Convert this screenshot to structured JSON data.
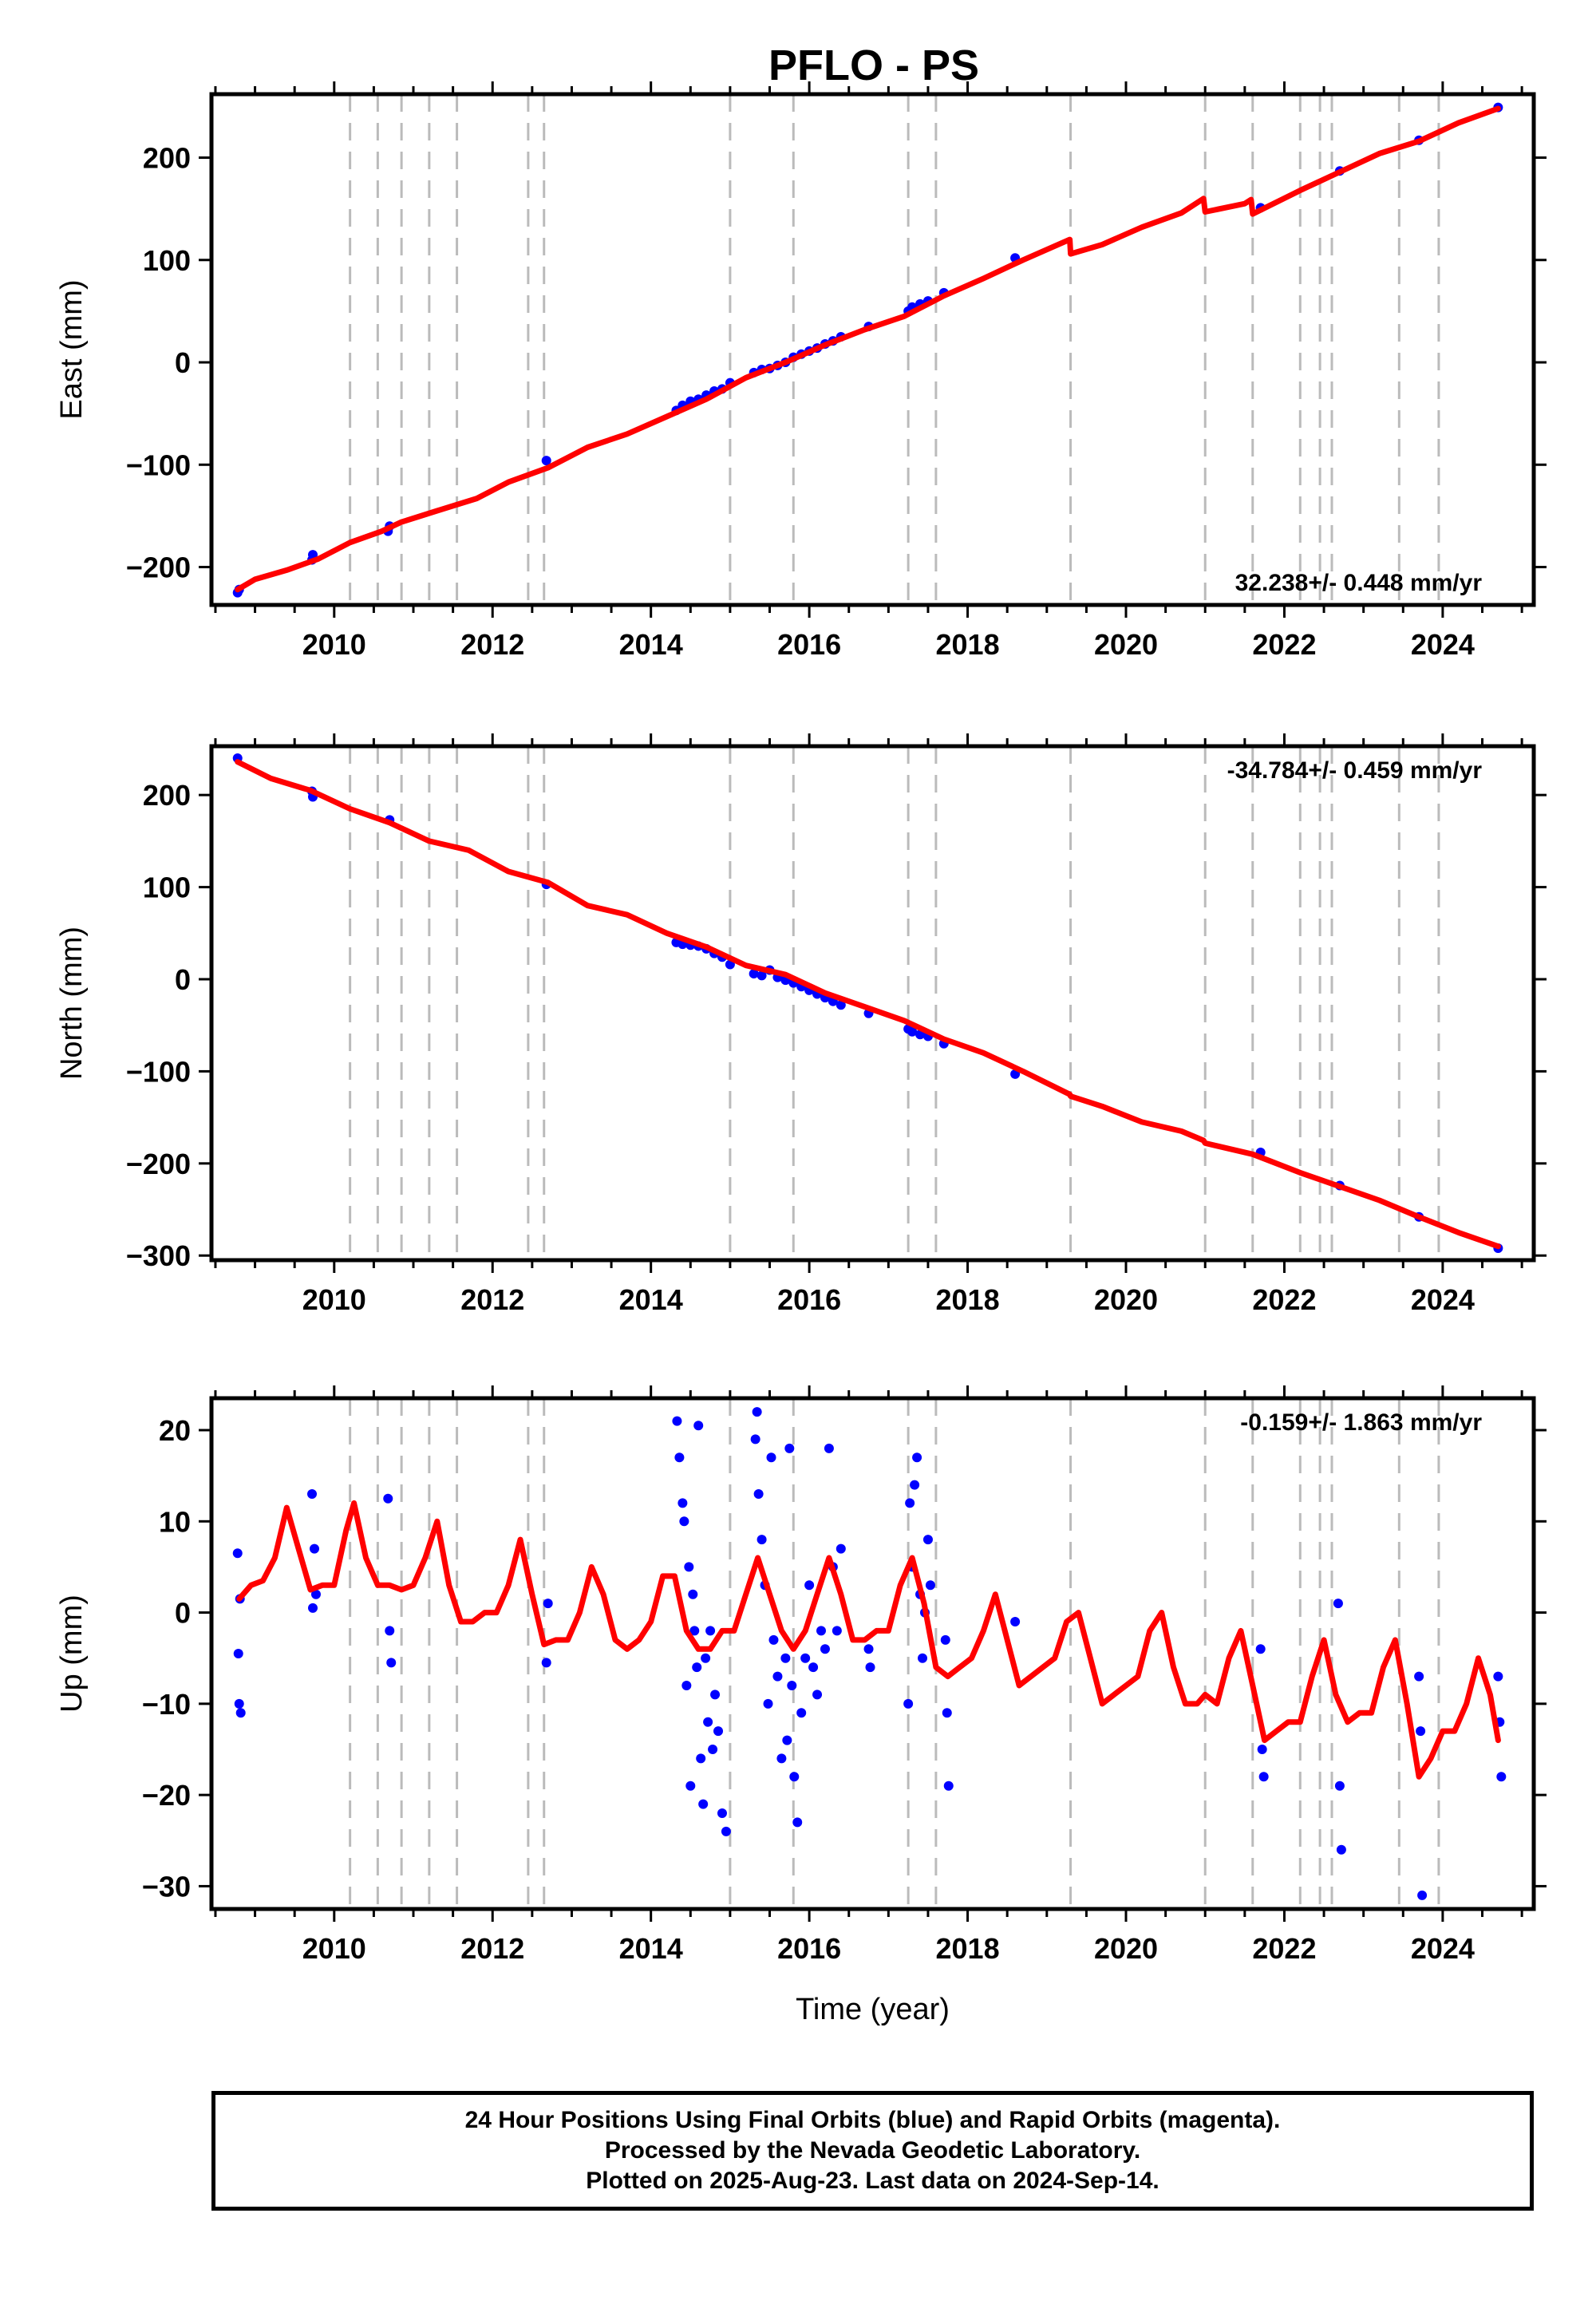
{
  "title": "PFLO - PS",
  "footer": {
    "line1": "24 Hour Positions Using Final Orbits (blue) and Rapid Orbits (magenta).",
    "line2": "Processed by the Nevada Geodetic Laboratory.",
    "line3": "Plotted on 2025-Aug-23. Last data on 2024-Sep-14."
  },
  "colors": {
    "data": "#0000ff",
    "model": "#ff0000",
    "breaks": "#bbbbbb"
  },
  "chart_data": [
    {
      "type": "scatter",
      "ylabel": "East (mm)",
      "xlabel": "",
      "xlim": [
        2008.45,
        2025.15
      ],
      "ylim": [
        -237,
        262
      ],
      "xticks": [
        2010,
        2012,
        2014,
        2016,
        2018,
        2020,
        2022,
        2024
      ],
      "yticks": [
        -200,
        -100,
        0,
        100,
        200
      ],
      "rate_text": "32.238+/- 0.448 mm/yr",
      "rate_position": "bottom-right",
      "breaks": [
        2010.2,
        2010.55,
        2010.85,
        2011.2,
        2011.55,
        2012.45,
        2012.65,
        2015.0,
        2015.8,
        2017.25,
        2017.6,
        2019.3,
        2021.0,
        2021.6,
        2022.2,
        2022.45,
        2022.6,
        2023.45,
        2023.95
      ],
      "series": [
        {
          "name": "",
          "kind": "points",
          "x": [
            2008.78,
            2008.8,
            2009.72,
            2009.73,
            2010.68,
            2010.7,
            2012.68,
            2014.32,
            2014.4,
            2014.5,
            2014.6,
            2014.7,
            2014.8,
            2014.9,
            2015.0,
            2015.3,
            2015.4,
            2015.5,
            2015.6,
            2015.7,
            2015.8,
            2015.9,
            2016.0,
            2016.1,
            2016.2,
            2016.3,
            2016.4,
            2016.75,
            2017.25,
            2017.3,
            2017.4,
            2017.5,
            2017.7,
            2018.6,
            2021.7,
            2022.7,
            2023.7,
            2024.7
          ],
          "y": [
            -225,
            -222,
            -193,
            -188,
            -165,
            -160,
            -96,
            -47,
            -42,
            -38,
            -36,
            -32,
            -28,
            -26,
            -20,
            -10,
            -7,
            -6,
            -3,
            0,
            5,
            8,
            11,
            14,
            18,
            21,
            25,
            35,
            50,
            54,
            57,
            60,
            68,
            102,
            151,
            187,
            217,
            249
          ]
        },
        {
          "name": "",
          "kind": "model",
          "x": [
            2008.78,
            2009.0,
            2009.4,
            2009.8,
            2010.2,
            2010.6,
            2010.85,
            2011.3,
            2011.8,
            2012.2,
            2012.7,
            2013.2,
            2013.7,
            2014.2,
            2014.7,
            2015.2,
            2015.7,
            2016.2,
            2016.7,
            2017.2,
            2017.7,
            2018.2,
            2018.7,
            2019.29,
            2019.3,
            2019.7,
            2020.2,
            2020.7,
            2020.98,
            2021.0,
            2021.5,
            2021.58,
            2021.6,
            2022.2,
            2022.7,
            2023.2,
            2023.7,
            2024.2,
            2024.7
          ],
          "y": [
            -222,
            -212,
            -203,
            -192,
            -176,
            -165,
            -156,
            -145,
            -133,
            -117,
            -103,
            -83,
            -70,
            -53,
            -36,
            -15,
            0,
            17,
            32,
            45,
            65,
            82,
            100,
            120,
            106,
            115,
            132,
            146,
            160,
            147,
            155,
            159,
            145,
            168,
            186,
            204,
            216,
            234,
            248
          ]
        }
      ]
    },
    {
      "type": "scatter",
      "ylabel": "North (mm)",
      "xlabel": "",
      "xlim": [
        2008.45,
        2025.15
      ],
      "ylim": [
        -305,
        253
      ],
      "xticks": [
        2010,
        2012,
        2014,
        2016,
        2018,
        2020,
        2022,
        2024
      ],
      "yticks": [
        -300,
        -200,
        -100,
        0,
        100,
        200
      ],
      "rate_text": "-34.784+/- 0.459 mm/yr",
      "rate_position": "top-right",
      "breaks": [
        2010.2,
        2010.55,
        2010.85,
        2011.2,
        2011.55,
        2012.45,
        2012.65,
        2015.0,
        2015.8,
        2017.25,
        2017.6,
        2019.3,
        2021.0,
        2021.6,
        2022.2,
        2022.45,
        2022.6,
        2023.45,
        2023.95
      ],
      "series": [
        {
          "name": "",
          "kind": "points",
          "x": [
            2008.78,
            2009.72,
            2009.73,
            2010.7,
            2012.68,
            2014.32,
            2014.4,
            2014.5,
            2014.6,
            2014.7,
            2014.8,
            2014.9,
            2015.0,
            2015.3,
            2015.4,
            2015.5,
            2015.6,
            2015.7,
            2015.8,
            2015.9,
            2016.0,
            2016.1,
            2016.2,
            2016.3,
            2016.4,
            2016.75,
            2017.25,
            2017.3,
            2017.4,
            2017.5,
            2017.7,
            2018.6,
            2021.7,
            2022.7,
            2023.7,
            2024.7
          ],
          "y": [
            240,
            204,
            198,
            173,
            103,
            40,
            38,
            37,
            36,
            33,
            28,
            24,
            16,
            6,
            4,
            10,
            2,
            -1,
            -4,
            -8,
            -12,
            -16,
            -20,
            -24,
            -28,
            -37,
            -54,
            -57,
            -60,
            -62,
            -70,
            -103,
            -188,
            -224,
            -258,
            -292
          ]
        },
        {
          "name": "",
          "kind": "model",
          "x": [
            2008.78,
            2009.2,
            2009.7,
            2010.2,
            2010.7,
            2011.2,
            2011.7,
            2012.2,
            2012.7,
            2013.2,
            2013.7,
            2014.2,
            2014.7,
            2015.2,
            2015.7,
            2016.2,
            2016.7,
            2017.2,
            2017.7,
            2018.2,
            2018.7,
            2019.29,
            2019.3,
            2019.7,
            2020.2,
            2020.7,
            2020.98,
            2021.0,
            2021.6,
            2022.2,
            2022.7,
            2023.2,
            2023.7,
            2024.2,
            2024.7
          ],
          "y": [
            236,
            218,
            205,
            185,
            170,
            150,
            140,
            117,
            105,
            80,
            70,
            50,
            35,
            15,
            5,
            -15,
            -30,
            -45,
            -65,
            -80,
            -100,
            -125,
            -127,
            -138,
            -155,
            -165,
            -175,
            -178,
            -190,
            -210,
            -225,
            -240,
            -258,
            -275,
            -290
          ]
        }
      ]
    },
    {
      "type": "scatter",
      "ylabel": "Up (mm)",
      "xlabel": "Time (year)",
      "xlim": [
        2008.45,
        2025.15
      ],
      "ylim": [
        -32.5,
        23.5
      ],
      "xticks": [
        2010,
        2012,
        2014,
        2016,
        2018,
        2020,
        2022,
        2024
      ],
      "yticks": [
        -30,
        -20,
        -10,
        0,
        10,
        20
      ],
      "rate_text": "-0.159+/- 1.863 mm/yr",
      "rate_position": "top-right",
      "breaks": [
        2010.2,
        2010.55,
        2010.85,
        2011.2,
        2011.55,
        2012.45,
        2012.65,
        2015.0,
        2015.8,
        2017.25,
        2017.6,
        2019.3,
        2021.0,
        2021.6,
        2022.2,
        2022.45,
        2022.6,
        2023.45,
        2023.95
      ],
      "series": [
        {
          "name": "",
          "kind": "points",
          "x": [
            2008.78,
            2008.79,
            2008.8,
            2008.81,
            2008.82,
            2009.72,
            2009.73,
            2009.75,
            2009.77,
            2010.68,
            2010.7,
            2010.72,
            2012.68,
            2012.7,
            2014.33,
            2014.36,
            2014.4,
            2014.42,
            2014.45,
            2014.48,
            2014.5,
            2014.53,
            2014.55,
            2014.58,
            2014.6,
            2014.63,
            2014.66,
            2014.69,
            2014.72,
            2014.75,
            2014.78,
            2014.81,
            2014.85,
            2014.9,
            2014.95,
            2015.32,
            2015.34,
            2015.36,
            2015.4,
            2015.44,
            2015.48,
            2015.52,
            2015.55,
            2015.6,
            2015.65,
            2015.7,
            2015.72,
            2015.75,
            2015.78,
            2015.81,
            2015.85,
            2015.9,
            2015.95,
            2016.0,
            2016.05,
            2016.1,
            2016.15,
            2016.2,
            2016.25,
            2016.3,
            2016.35,
            2016.4,
            2016.75,
            2016.77,
            2017.25,
            2017.27,
            2017.3,
            2017.33,
            2017.36,
            2017.4,
            2017.43,
            2017.46,
            2017.5,
            2017.53,
            2017.72,
            2017.74,
            2017.76,
            2018.6,
            2021.7,
            2021.72,
            2021.74,
            2022.68,
            2022.7,
            2022.72,
            2023.7,
            2023.72,
            2023.74,
            2024.7,
            2024.72,
            2024.74
          ],
          "y": [
            6.5,
            -4.5,
            -10,
            1.5,
            -11,
            13,
            0.5,
            7,
            2,
            12.5,
            -2,
            -5.5,
            -5.5,
            1,
            21,
            17,
            12,
            10,
            -8,
            5,
            -19,
            2,
            -2,
            -6,
            20.5,
            -16,
            -21,
            -5,
            -12,
            -2,
            -15,
            -9,
            -13,
            -22,
            -24,
            19,
            22,
            13,
            8,
            3,
            -10,
            17,
            -3,
            -7,
            -16,
            -5,
            -14,
            18,
            -8,
            -18,
            -23,
            -11,
            -5,
            3,
            -6,
            -9,
            -2,
            -4,
            18,
            5,
            -2,
            7,
            -4,
            -6,
            -10,
            12,
            5,
            14,
            17,
            2,
            -5,
            0,
            8,
            3,
            -3,
            -11,
            -19,
            -1,
            -4,
            -15,
            -18,
            1,
            -19,
            -26,
            -7,
            -13,
            -31,
            -7,
            -12,
            -18
          ]
        },
        {
          "name": "",
          "kind": "model",
          "x": [
            2008.8,
            2008.95,
            2009.1,
            2009.25,
            2009.4,
            2009.55,
            2009.7,
            2009.85,
            2010.0,
            2010.15,
            2010.25,
            2010.4,
            2010.55,
            2010.7,
            2010.85,
            2011.0,
            2011.15,
            2011.3,
            2011.45,
            2011.6,
            2011.75,
            2011.9,
            2012.05,
            2012.2,
            2012.35,
            2012.5,
            2012.65,
            2012.8,
            2012.95,
            2013.1,
            2013.25,
            2013.4,
            2013.55,
            2013.7,
            2013.85,
            2014.0,
            2014.15,
            2014.3,
            2014.45,
            2014.6,
            2014.75,
            2014.9,
            2015.05,
            2015.2,
            2015.35,
            2015.5,
            2015.65,
            2015.8,
            2015.95,
            2016.1,
            2016.25,
            2016.4,
            2016.55,
            2016.7,
            2016.85,
            2017.0,
            2017.15,
            2017.3,
            2017.45,
            2017.6,
            2017.75,
            2017.9,
            2018.05,
            2018.2,
            2018.35,
            2018.5,
            2018.65,
            2018.8,
            2018.95,
            2019.1,
            2019.25,
            2019.4,
            2019.55,
            2019.7,
            2019.85,
            2020.0,
            2020.15,
            2020.3,
            2020.45,
            2020.6,
            2020.75,
            2020.9,
            2021.0,
            2021.15,
            2021.3,
            2021.45,
            2021.6,
            2021.75,
            2021.9,
            2022.05,
            2022.2,
            2022.35,
            2022.5,
            2022.65,
            2022.8,
            2022.95,
            2023.1,
            2023.25,
            2023.4,
            2023.55,
            2023.7,
            2023.85,
            2024.0,
            2024.15,
            2024.3,
            2024.45,
            2024.6,
            2024.7
          ],
          "y": [
            1.5,
            3,
            3.5,
            6,
            11.5,
            7,
            2.5,
            3,
            3,
            9,
            12,
            6,
            3,
            3,
            2.5,
            3,
            6,
            10,
            3,
            -1,
            -1,
            0,
            0,
            3,
            8,
            2,
            -3.5,
            -3,
            -3,
            0,
            5,
            2,
            -3,
            -4,
            -3,
            -1,
            4,
            4,
            -2,
            -4,
            -4,
            -2,
            -2,
            2,
            6,
            2,
            -2,
            -4,
            -2,
            2,
            6,
            2,
            -3,
            -3,
            -2,
            -2,
            3,
            6,
            1,
            -6,
            -7,
            -6,
            -5,
            -2,
            2,
            -3,
            -8,
            -7,
            -6,
            -5,
            -1,
            0,
            -5,
            -10,
            -9,
            -8,
            -7,
            -2,
            0,
            -6,
            -10,
            -10,
            -9,
            -10,
            -5,
            -2,
            -8,
            -14,
            -13,
            -12,
            -12,
            -7,
            -3,
            -9,
            -12,
            -11,
            -11,
            -6,
            -3,
            -10,
            -18,
            -16,
            -13,
            -13,
            -10,
            -5,
            -9,
            -14
          ]
        }
      ]
    }
  ]
}
